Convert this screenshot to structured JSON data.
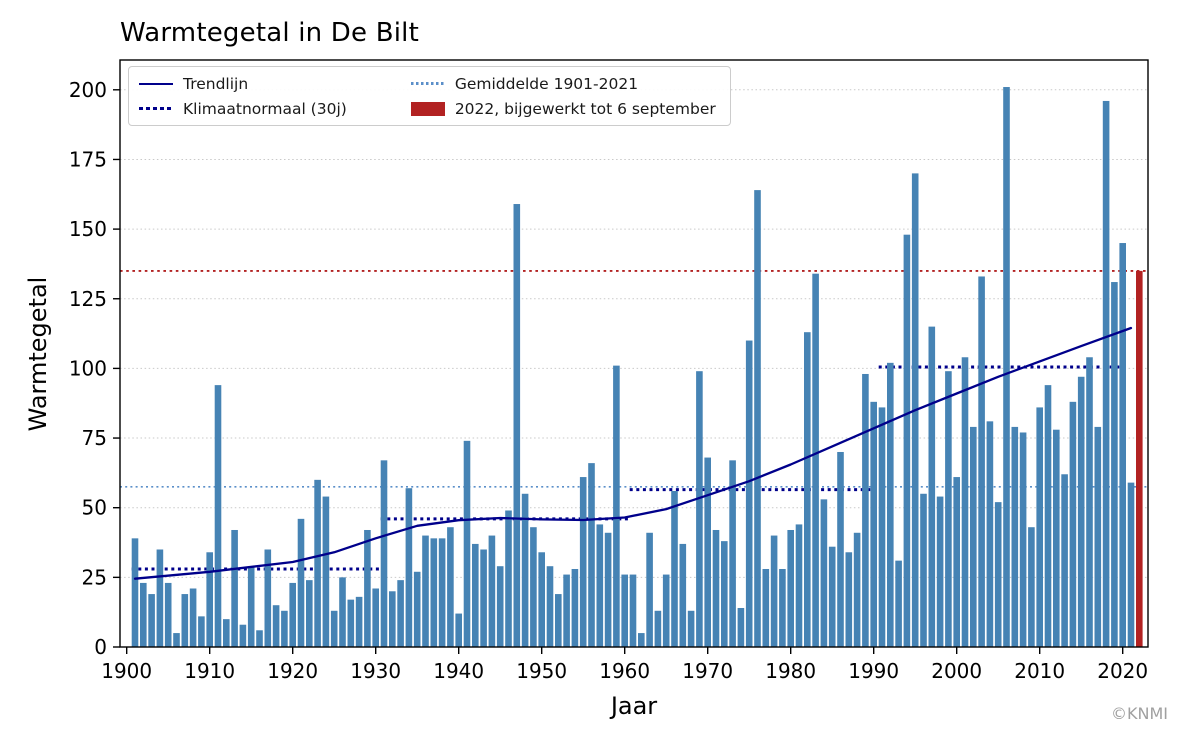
{
  "title": "Warmtegetal in De Bilt",
  "xlabel": "Jaar",
  "ylabel": "Warmtegetal",
  "watermark": "©KNMI",
  "legend": {
    "trend": "Trendlijn",
    "klimaatnormaal": "Klimaatnormaal (30j)",
    "gemiddelde": "Gemiddelde 1901-2021",
    "y2022": "2022, bijgewerkt tot 6 september"
  },
  "colors": {
    "bar": "#4683B4",
    "bar_2022": "#B22222",
    "trend_line": "#00008B",
    "klimaatnormaal_line": "#00008B",
    "gemiddelde_line": "#5b8fc9",
    "red_reference_line": "#B22222",
    "grid": "#c9c9c9",
    "axis": "#000000",
    "watermark": "#a0a0a0"
  },
  "chart_data": {
    "type": "bar",
    "title": "Warmtegetal in De Bilt",
    "xlabel": "Jaar",
    "ylabel": "Warmtegetal",
    "start_year": 1901,
    "end_year": 2022,
    "values": [
      39,
      23,
      19,
      35,
      23,
      5,
      19,
      21,
      11,
      34,
      94,
      10,
      42,
      8,
      29,
      6,
      35,
      15,
      13,
      23,
      46,
      24,
      60,
      54,
      13,
      25,
      17,
      18,
      42,
      21,
      67,
      20,
      24,
      57,
      27,
      40,
      39,
      39,
      43,
      12,
      74,
      37,
      35,
      40,
      29,
      49,
      159,
      55,
      43,
      34,
      29,
      19,
      26,
      28,
      61,
      66,
      44,
      41,
      101,
      26,
      26,
      5,
      41,
      13,
      26,
      56,
      37,
      13,
      99,
      68,
      42,
      38,
      67,
      14,
      110,
      164,
      28,
      40,
      28,
      42,
      44,
      113,
      134,
      53,
      36,
      70,
      34,
      41,
      98,
      88,
      86,
      102,
      31,
      148,
      170,
      55,
      115,
      54,
      99,
      61,
      104,
      79,
      133,
      81,
      52,
      201,
      79,
      77,
      43,
      86,
      94,
      78,
      62,
      88,
      97,
      104,
      79,
      196,
      131,
      145,
      59,
      135
    ],
    "highlight_year": 2022,
    "highlight_value": 135,
    "reference_lines": [
      {
        "name": "Gemiddelde 1901-2021",
        "value": 57.5,
        "style": "dotted-lightblue"
      },
      {
        "name": "2022, bijgewerkt tot 6 september",
        "value": 135,
        "style": "dotted-red"
      }
    ],
    "klimaatnormaal_segments": [
      {
        "from": 1901,
        "to": 1930,
        "value": 28
      },
      {
        "from": 1931,
        "to": 1960,
        "value": 46
      },
      {
        "from": 1961,
        "to": 1990,
        "value": 56.5
      },
      {
        "from": 1991,
        "to": 2020,
        "value": 100.5
      }
    ],
    "trend": [
      [
        1901,
        24.5
      ],
      [
        1910,
        27
      ],
      [
        1920,
        30.5
      ],
      [
        1925,
        34
      ],
      [
        1930,
        39
      ],
      [
        1935,
        43.5
      ],
      [
        1940,
        45.5
      ],
      [
        1945,
        46.3
      ],
      [
        1950,
        45.8
      ],
      [
        1955,
        45.6
      ],
      [
        1960,
        46.5
      ],
      [
        1965,
        49.5
      ],
      [
        1970,
        54.5
      ],
      [
        1975,
        59.5
      ],
      [
        1980,
        65.5
      ],
      [
        1985,
        72
      ],
      [
        1990,
        78.5
      ],
      [
        1995,
        85
      ],
      [
        2000,
        91
      ],
      [
        2005,
        97
      ],
      [
        2010,
        102.5
      ],
      [
        2015,
        108
      ],
      [
        2021,
        114.5
      ]
    ],
    "yticks": [
      0,
      25,
      50,
      75,
      100,
      125,
      150,
      175,
      200
    ],
    "xticks": [
      1900,
      1910,
      1920,
      1930,
      1940,
      1950,
      1960,
      1970,
      1980,
      1990,
      2000,
      2010,
      2020
    ],
    "ylim": [
      0,
      210.7
    ],
    "grid": "horizontal-dotted",
    "legend_position": "upper-left"
  }
}
